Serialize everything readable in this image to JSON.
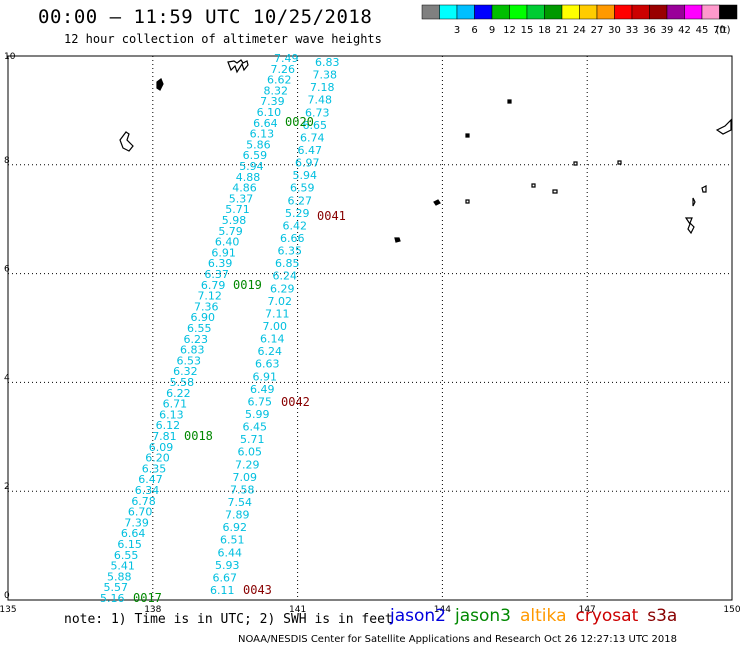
{
  "title": "00:00 – 11:59 UTC 10/25/2018",
  "subtitle": "12 hour collection of altimeter wave heights",
  "legend": {
    "unit": "(ft)",
    "swatches": [
      {
        "color": "#808080",
        "label": ""
      },
      {
        "color": "#00ffff",
        "label": "3"
      },
      {
        "color": "#00bfff",
        "label": "6"
      },
      {
        "color": "#0000ff",
        "label": "9"
      },
      {
        "color": "#00bf00",
        "label": "12"
      },
      {
        "color": "#00ff00",
        "label": "15"
      },
      {
        "color": "#00cc33",
        "label": "18"
      },
      {
        "color": "#009900",
        "label": "21"
      },
      {
        "color": "#ffff00",
        "label": "24"
      },
      {
        "color": "#ffcc00",
        "label": "27"
      },
      {
        "color": "#ff9900",
        "label": "30"
      },
      {
        "color": "#ff0000",
        "label": "33"
      },
      {
        "color": "#cc0000",
        "label": "36"
      },
      {
        "color": "#990000",
        "label": "39"
      },
      {
        "color": "#990099",
        "label": "42"
      },
      {
        "color": "#ff00ff",
        "label": "45"
      },
      {
        "color": "#ff99cc",
        "label": "70"
      },
      {
        "color": "#000000",
        "label": ""
      }
    ]
  },
  "axes": {
    "x_ticks": [
      "135",
      "138",
      "141",
      "144",
      "147",
      "150"
    ],
    "y_ticks": [
      "0",
      "2",
      "4",
      "6",
      "8",
      "10"
    ]
  },
  "passes": {
    "p0017": {
      "label": "0017",
      "label_color": "#008800",
      "values": [
        "5.16",
        "5.57",
        "5.88",
        "5.41",
        "6.55",
        "6.15",
        "6.64",
        "7.39",
        "6.70",
        "6.78",
        "6.34",
        "6.47",
        "6.35",
        "6.20",
        "6.09",
        "7.81",
        "6.12",
        "6.13",
        "6.71",
        "6.22",
        "5.58",
        "6.32",
        "6.53",
        "6.83",
        "6.23",
        "6.55",
        "6.90",
        "7.36",
        "7.12",
        "6.79",
        "6.37",
        "6.39",
        "6.91",
        "6.40",
        "5.79",
        "5.98",
        "5.71",
        "5.37",
        "4.86",
        "4.88",
        "5.94",
        "6.59",
        "5.86",
        "6.13",
        "6.64",
        "6.10",
        "7.39",
        "8.32",
        "6.62",
        "7.26",
        "7.49"
      ]
    },
    "p0018": {
      "label": "0018",
      "label_color": "#008800"
    },
    "p0019": {
      "label": "0019",
      "label_color": "#008800"
    },
    "p0020": {
      "label": "0020",
      "label_color": "#008800"
    },
    "p0043": {
      "label": "0043",
      "label_color": "#880000",
      "values": [
        "6.11",
        "6.67",
        "5.93",
        "6.44",
        "6.51",
        "6.92",
        "7.89",
        "7.54",
        "7.58",
        "7.09",
        "7.29",
        "6.05",
        "5.71",
        "6.45",
        "5.99",
        "6.75",
        "6.49",
        "6.91",
        "6.63",
        "6.24",
        "6.14",
        "7.00",
        "7.11",
        "7.02",
        "6.29",
        "6.24",
        "6.85",
        "6.35",
        "6.66",
        "6.42",
        "5.29",
        "6.27",
        "6.59",
        "5.94",
        "6.97",
        "6.47",
        "6.74",
        "6.65",
        "6.73",
        "7.48",
        "7.18",
        "7.38",
        "6.83"
      ]
    },
    "p0042": {
      "label": "0042",
      "label_color": "#880000"
    },
    "p0041": {
      "label": "0041",
      "label_color": "#880000"
    }
  },
  "satellites": [
    {
      "name": "jason2",
      "color": "#0000dd"
    },
    {
      "name": "jason3",
      "color": "#008800"
    },
    {
      "name": "altika",
      "color": "#ff9900"
    },
    {
      "name": "cryosat",
      "color": "#cc0000"
    },
    {
      "name": "s3a",
      "color": "#880000"
    }
  ],
  "note": "note: 1) Time is in UTC; 2) SWH is in feet",
  "credit": "NOAA/NESDIS Center for Satellite Applications and Research    Oct 26 12:27:13 UTC 2018"
}
